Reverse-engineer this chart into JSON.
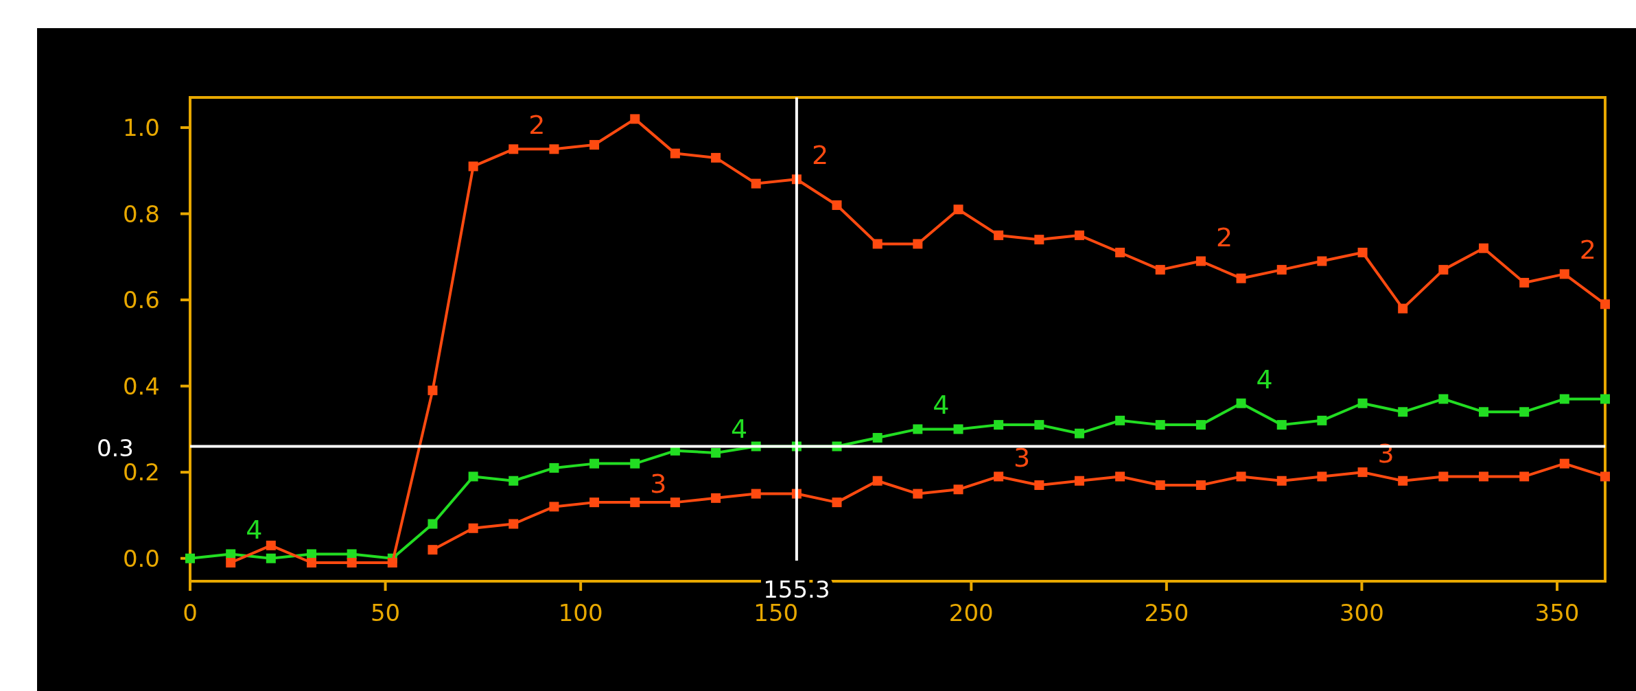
{
  "chart_data": {
    "type": "line",
    "x": [
      0,
      10.4,
      20.7,
      31.1,
      41.4,
      51.8,
      62.1,
      72.5,
      82.8,
      93.2,
      103.5,
      113.9,
      124.2,
      134.6,
      144.9,
      155.3,
      165.6,
      176,
      186.3,
      196.7,
      207,
      217.4,
      227.7,
      238.1,
      248.4,
      258.8,
      269.1,
      279.5,
      289.8,
      300.2,
      310.5,
      320.9,
      331.2,
      341.6,
      351.9,
      362.3
    ],
    "series": [
      {
        "name": "2",
        "color": "#ff4a10",
        "values": [
          null,
          -0.01,
          0.03,
          -0.01,
          -0.01,
          -0.01,
          0.39,
          0.91,
          0.95,
          0.95,
          0.96,
          1.02,
          0.94,
          0.93,
          0.87,
          0.88,
          0.82,
          0.73,
          0.73,
          0.81,
          0.75,
          0.74,
          0.75,
          0.71,
          0.67,
          0.69,
          0.65,
          0.67,
          0.69,
          0.71,
          0.58,
          0.67,
          0.72,
          0.64,
          0.66,
          0.59
        ]
      },
      {
        "name": "3",
        "color": "#ff4a10",
        "values": [
          null,
          null,
          null,
          null,
          null,
          null,
          0.02,
          0.07,
          0.08,
          0.12,
          0.13,
          0.13,
          0.13,
          0.14,
          0.15,
          0.15,
          0.13,
          0.18,
          0.15,
          0.16,
          0.19,
          0.17,
          0.18,
          0.19,
          0.17,
          0.17,
          0.19,
          0.18,
          0.19,
          0.2,
          0.18,
          0.19,
          0.19,
          0.19,
          0.22,
          0.19
        ]
      },
      {
        "name": "4",
        "color": "#22dd22",
        "values": [
          0,
          0.01,
          0,
          0.01,
          0.01,
          0,
          0.08,
          0.19,
          0.18,
          0.21,
          0.22,
          0.22,
          0.25,
          0.245,
          0.26,
          0.26,
          0.26,
          0.28,
          0.3,
          0.3,
          0.31,
          0.31,
          0.29,
          0.32,
          0.31,
          0.31,
          0.36,
          0.31,
          0.32,
          0.36,
          0.34,
          0.37,
          0.34,
          0.34,
          0.37,
          0.37
        ]
      }
    ],
    "xlim": [
      0,
      362.3
    ],
    "xticks": [
      0,
      50,
      100,
      150,
      200,
      250,
      300,
      350
    ],
    "ylim": [
      -0.053,
      1.07
    ],
    "yticks": [
      {
        "value": 0,
        "label": "0.0"
      },
      0.2,
      0.4,
      0.6,
      0.8,
      {
        "value": 1,
        "label": "1.0"
      }
    ],
    "ref_lines": [
      {
        "axis": "x",
        "value": 155.3,
        "label": "155.3",
        "color": "#ffffff"
      },
      {
        "axis": "y",
        "value": 0.26,
        "label": "0.3",
        "color": "#ffffff"
      }
    ],
    "grid": false,
    "legend": false,
    "marker": "square",
    "line_style": "solid"
  }
}
